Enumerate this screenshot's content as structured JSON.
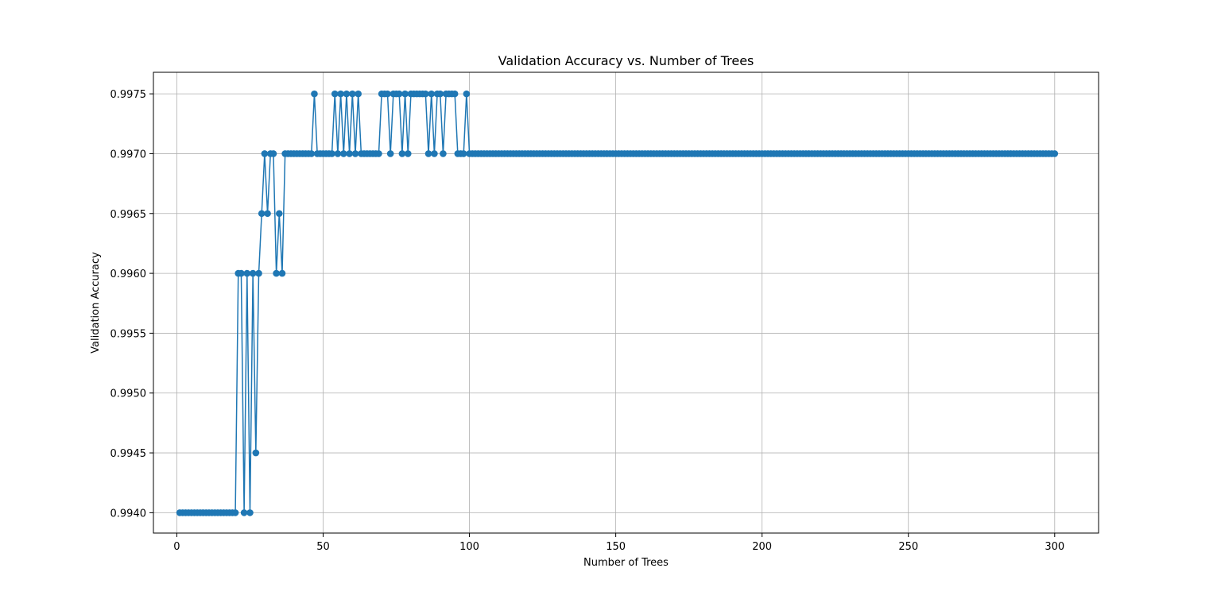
{
  "chart_data": {
    "type": "line",
    "title": "Validation Accuracy vs. Number of Trees",
    "xlabel": "Number of Trees",
    "ylabel": "Validation Accuracy",
    "xlim": [
      -8,
      315
    ],
    "ylim": [
      0.99383,
      0.99768
    ],
    "x_ticks": [
      0,
      50,
      100,
      150,
      200,
      250,
      300
    ],
    "x_tick_labels": [
      "0",
      "50",
      "100",
      "150",
      "200",
      "250",
      "300"
    ],
    "y_ticks": [
      0.994,
      0.9945,
      0.995,
      0.9955,
      0.996,
      0.9965,
      0.997,
      0.9975
    ],
    "y_tick_labels": [
      "0.9940",
      "0.9945",
      "0.9950",
      "0.9955",
      "0.9960",
      "0.9965",
      "0.9970",
      "0.9975"
    ],
    "grid": true,
    "marker": "circle",
    "color": "#1f77b4",
    "x_start": 1,
    "series": [
      {
        "values_head": [
          0.994,
          0.994,
          0.994,
          0.994,
          0.994,
          0.994,
          0.994,
          0.994,
          0.994,
          0.994,
          0.994,
          0.994,
          0.994,
          0.994,
          0.994,
          0.994,
          0.994,
          0.994,
          0.994,
          0.994,
          0.996,
          0.996,
          0.994,
          0.996,
          0.994,
          0.996,
          0.9945,
          0.996,
          0.9965,
          0.997,
          0.9965,
          0.997,
          0.997,
          0.996,
          0.9965,
          0.996,
          0.997,
          0.997,
          0.997,
          0.997,
          0.997,
          0.997,
          0.997,
          0.997,
          0.997,
          0.997,
          0.9975,
          0.997,
          0.997,
          0.997,
          0.997,
          0.997,
          0.997,
          0.9975,
          0.997,
          0.9975,
          0.997,
          0.9975,
          0.997,
          0.9975,
          0.997,
          0.9975,
          0.997,
          0.997,
          0.997,
          0.997,
          0.997,
          0.997,
          0.997,
          0.9975,
          0.9975,
          0.9975,
          0.997,
          0.9975,
          0.9975,
          0.9975,
          0.997,
          0.9975,
          0.997,
          0.9975,
          0.9975,
          0.9975,
          0.9975,
          0.9975,
          0.9975,
          0.997,
          0.9975,
          0.997,
          0.9975,
          0.9975,
          0.997,
          0.9975,
          0.9975,
          0.9975,
          0.9975,
          0.997,
          0.997,
          0.997,
          0.9975,
          0.997
        ],
        "tail_value": 0.997,
        "x_end": 300
      }
    ]
  }
}
